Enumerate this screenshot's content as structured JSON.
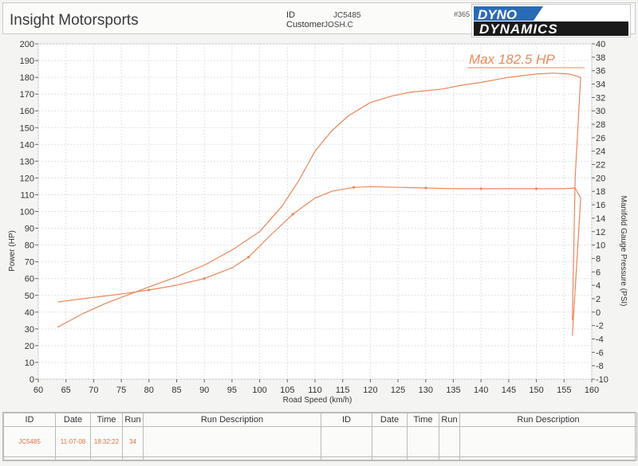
{
  "header": {
    "company": "Insight Motorsports",
    "id_label": "ID",
    "id_value": "JC5485",
    "customer_label": "Customer",
    "customer_value": "JOSH.C",
    "run_number": "#365",
    "logo_top": "DYNO",
    "logo_bottom": "DYNAMICS"
  },
  "chart_data": {
    "type": "line",
    "title": "",
    "annotation": "Max 182.5 HP",
    "xlabel": "Road Speed (km/h)",
    "ylabel": "Power (HP)",
    "y2label": "Manifold Gauge Pressure (PSI)",
    "xlim": [
      60,
      160
    ],
    "ylim": [
      0,
      200
    ],
    "y2lim": [
      -10,
      40
    ],
    "x_ticks": [
      60,
      65,
      70,
      75,
      80,
      85,
      90,
      95,
      100,
      105,
      110,
      115,
      120,
      125,
      130,
      135,
      140,
      145,
      150,
      155,
      160
    ],
    "y_ticks": [
      0,
      10,
      20,
      30,
      40,
      50,
      60,
      70,
      80,
      90,
      100,
      110,
      120,
      130,
      140,
      150,
      160,
      170,
      180,
      190,
      200
    ],
    "y2_ticks": [
      -10,
      -8,
      -6,
      -4,
      -2,
      0,
      2,
      4,
      6,
      8,
      10,
      12,
      14,
      16,
      18,
      20,
      22,
      24,
      26,
      28,
      30,
      32,
      34,
      36,
      38,
      40
    ],
    "grid": true,
    "color": "#e8875a",
    "series": [
      {
        "axis": "left",
        "x": [
          63.5,
          68,
          72,
          76,
          80,
          85,
          90,
          95,
          100,
          104,
          107,
          110,
          113,
          116,
          120,
          124,
          127,
          130,
          133,
          136,
          140,
          145,
          150,
          153,
          156,
          158,
          157,
          156.5
        ],
        "y": [
          31,
          39,
          45,
          50,
          55,
          61,
          68,
          77,
          88,
          103,
          118,
          136,
          148,
          157,
          165,
          169,
          171,
          172,
          173,
          175,
          177,
          180,
          182,
          182.5,
          182,
          180,
          120,
          35
        ]
      },
      {
        "axis": "right",
        "x": [
          63.5,
          68,
          72,
          76,
          80,
          85,
          90,
          95,
          98,
          102,
          106,
          110,
          113,
          117,
          120,
          125,
          130,
          135,
          140,
          145,
          150,
          155,
          157,
          158,
          157.5,
          156.5
        ],
        "y": [
          1.5,
          2.0,
          2.4,
          2.8,
          3.3,
          4.0,
          5.0,
          6.6,
          8.2,
          11.5,
          14.6,
          17.0,
          18.0,
          18.6,
          18.7,
          18.6,
          18.5,
          18.4,
          18.4,
          18.4,
          18.4,
          18.4,
          18.5,
          17.0,
          10.0,
          -3.5
        ]
      }
    ]
  },
  "table": {
    "headers": [
      "ID",
      "Date",
      "Time",
      "Run",
      "Run Description",
      "ID",
      "Date",
      "Time",
      "Run",
      "Run Description"
    ],
    "row1": [
      "JC5485",
      "11-07-08",
      "18:32:22",
      "34",
      "",
      "",
      "",
      "",
      "",
      ""
    ]
  }
}
